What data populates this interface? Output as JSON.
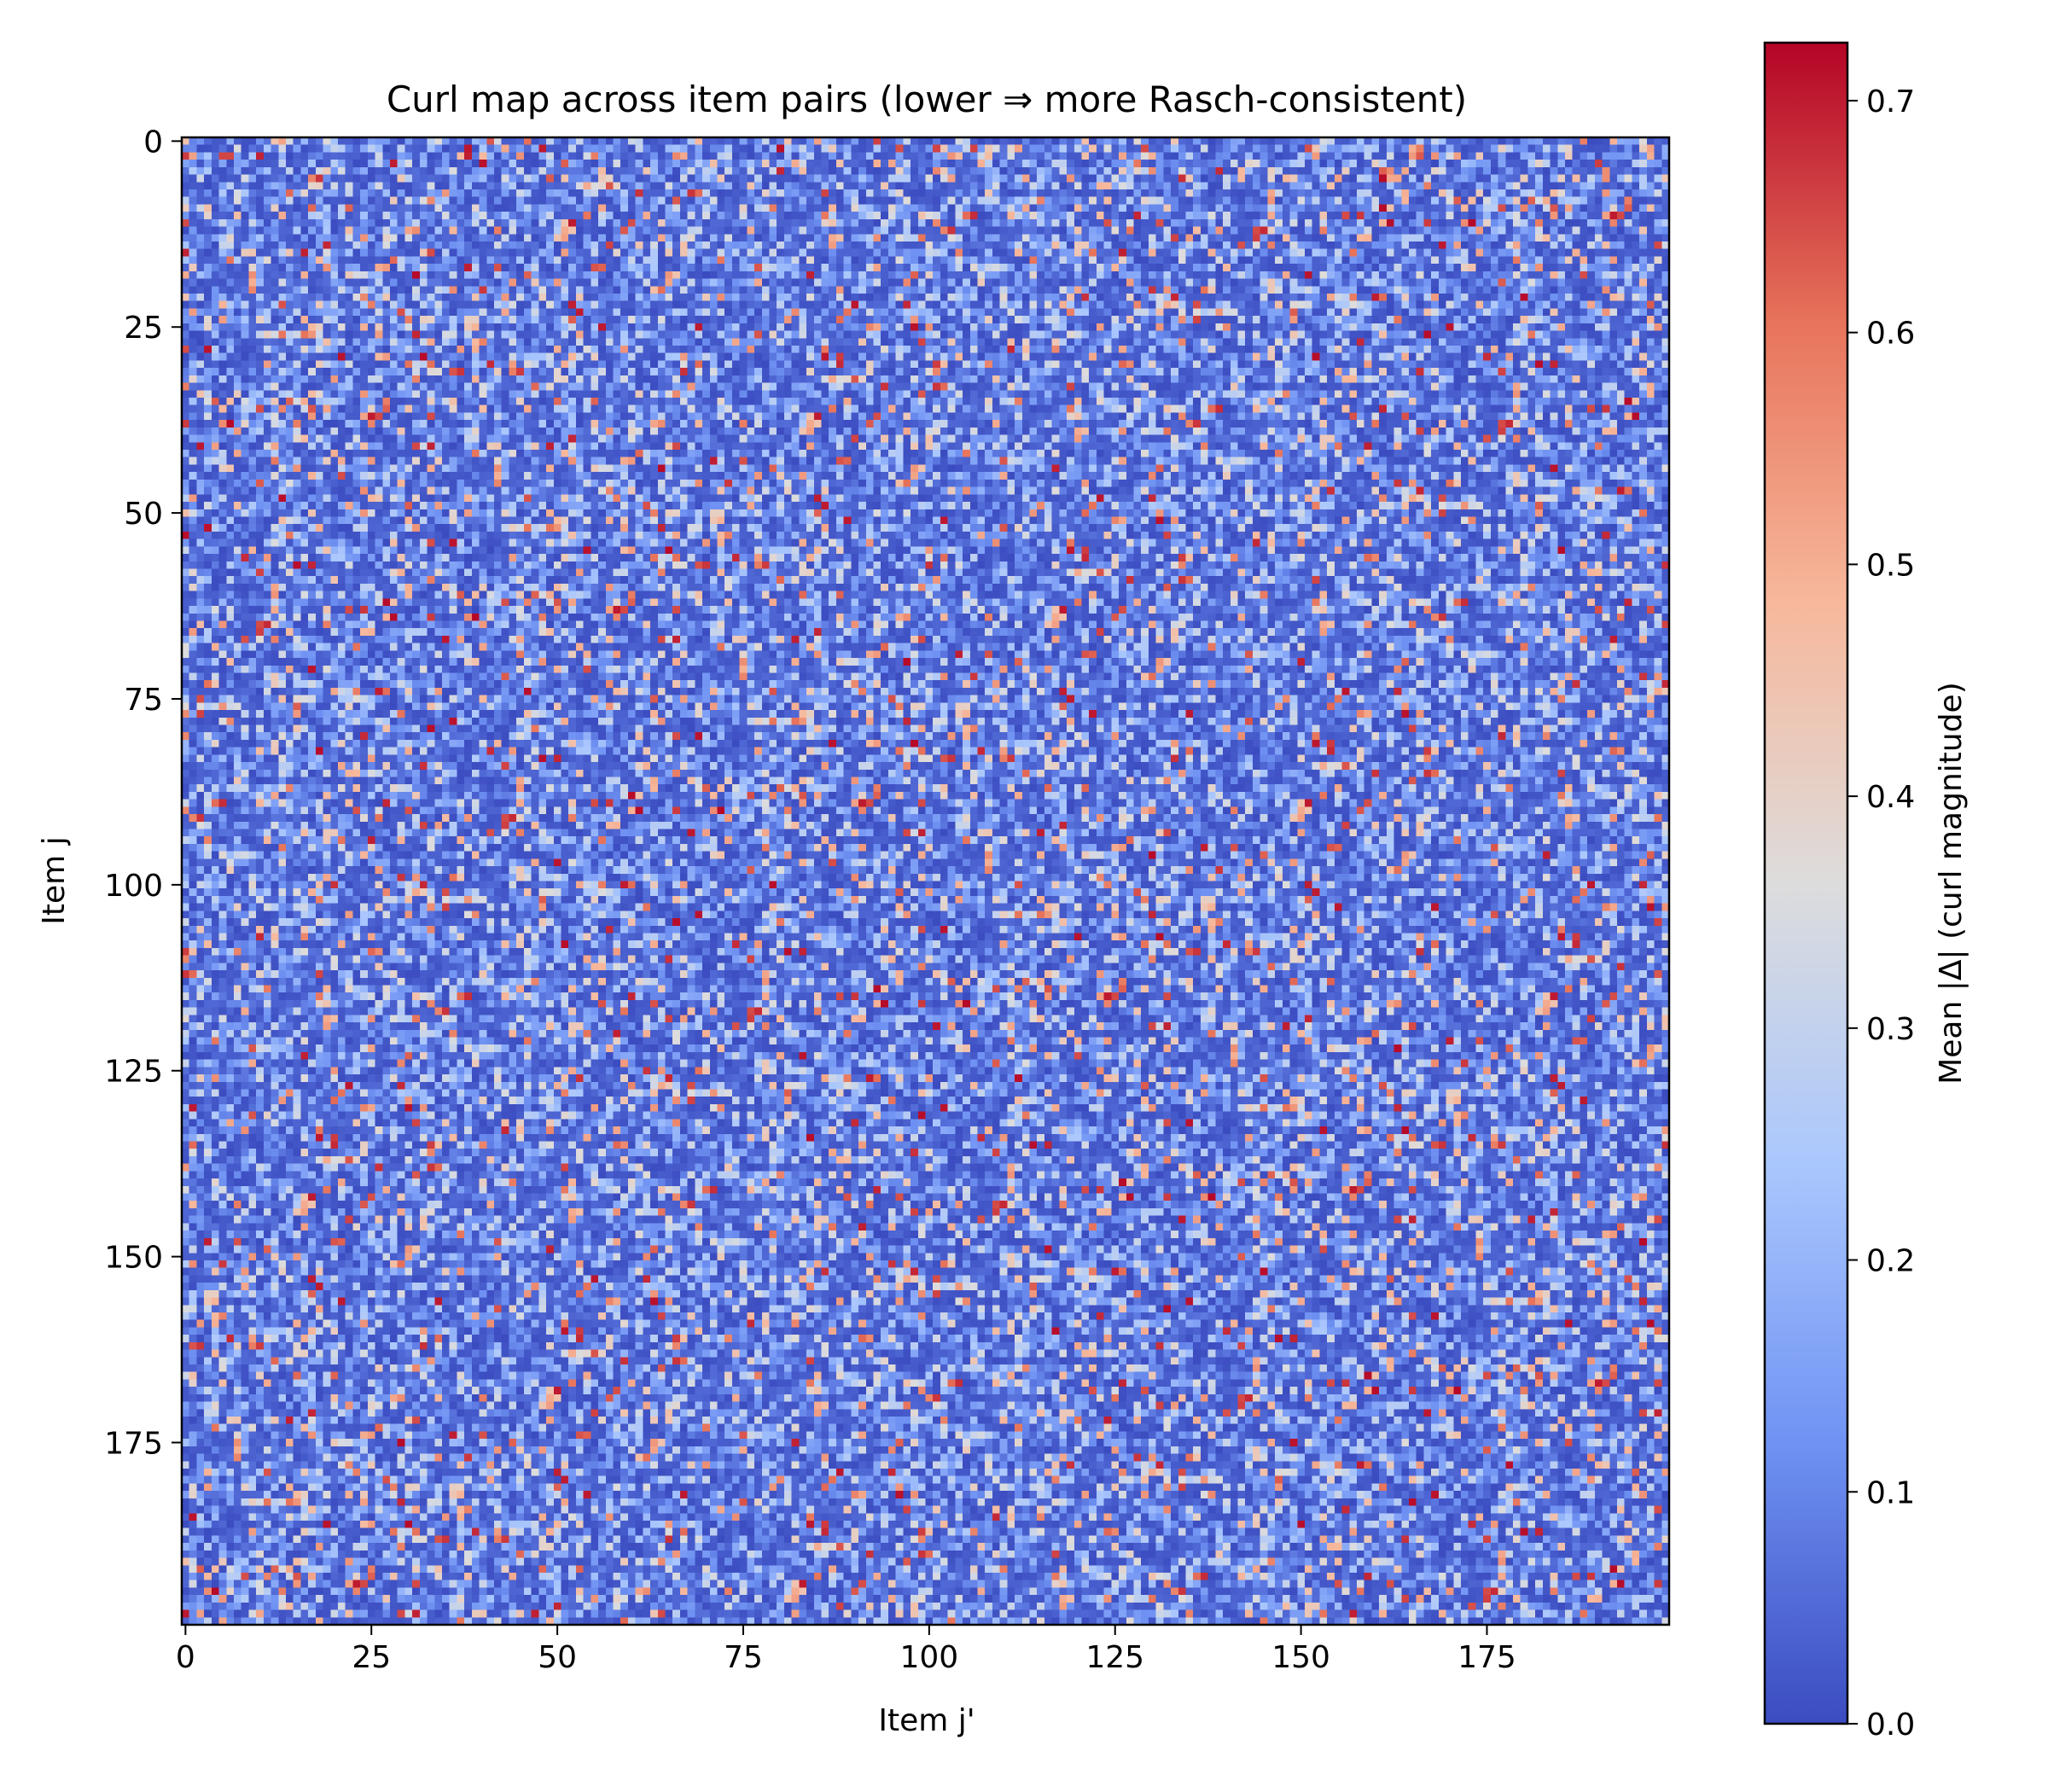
{
  "chart_data": {
    "type": "heatmap",
    "title": "Curl map across item pairs (lower ⇒ more Rasch-consistent)",
    "xlabel": "Item j'",
    "ylabel": "Item j",
    "n_rows": 200,
    "n_cols": 200,
    "x_range": [
      0,
      199
    ],
    "y_range": [
      0,
      199
    ],
    "y_axis_inverted": true,
    "x_ticks": [
      0,
      25,
      50,
      75,
      100,
      125,
      150,
      175
    ],
    "y_ticks": [
      0,
      25,
      50,
      75,
      100,
      125,
      150,
      175
    ],
    "x_tick_labels": [
      "0",
      "25",
      "50",
      "75",
      "100",
      "125",
      "150",
      "175"
    ],
    "y_tick_labels": [
      "0",
      "25",
      "50",
      "75",
      "100",
      "125",
      "150",
      "175"
    ],
    "value_summary": {
      "min": 0.0,
      "max": 0.72,
      "typical_range": [
        0.0,
        0.35
      ],
      "pattern": "noisy, mostly low values with scattered high cells"
    },
    "colormap": "coolwarm",
    "colorbar": {
      "label": "Mean |Δ| (curl magnitude)",
      "vmin": 0.0,
      "vmax": 0.725,
      "ticks": [
        0.0,
        0.1,
        0.2,
        0.3,
        0.4,
        0.5,
        0.6,
        0.7
      ],
      "tick_labels": [
        "0.0",
        "0.1",
        "0.2",
        "0.3",
        "0.4",
        "0.5",
        "0.6",
        "0.7"
      ]
    },
    "colormap_stops": [
      "#3b4cc0",
      "#6f92f3",
      "#aac7fd",
      "#dddcdc",
      "#f7b89c",
      "#e7745b",
      "#b40426"
    ],
    "grid": false,
    "legend": "none"
  }
}
